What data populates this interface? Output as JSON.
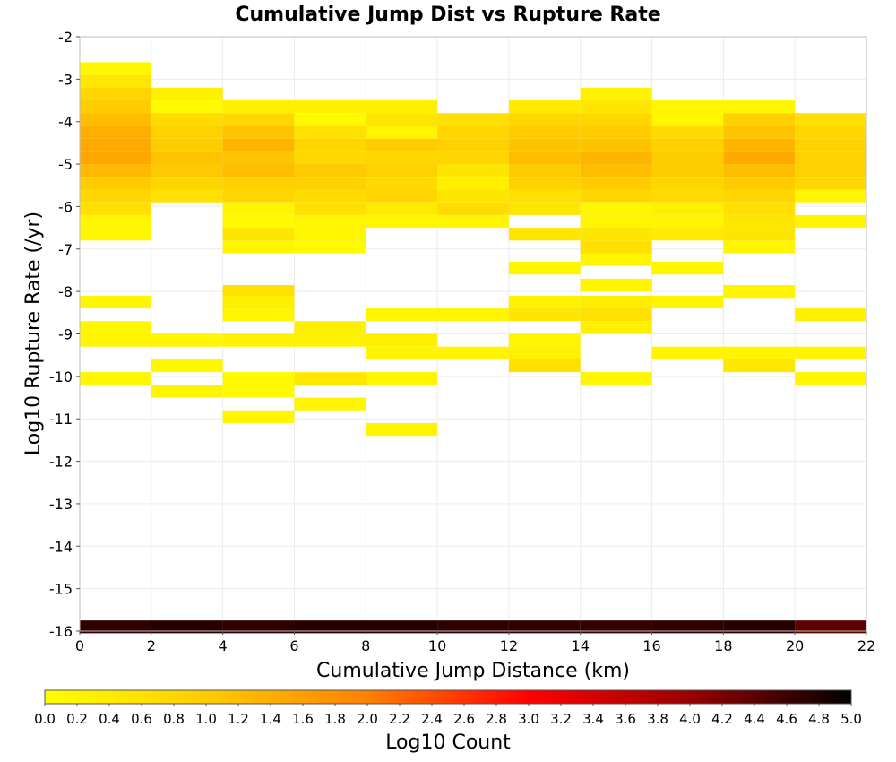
{
  "chart_data": {
    "type": "heatmap",
    "title": "Cumulative Jump Dist vs Rupture Rate",
    "xlabel": "Cumulative Jump Distance (km)",
    "ylabel": "Log10 Rupture Rate (/yr)",
    "colorbar_label": "Log10 Count",
    "xlim": [
      0,
      22
    ],
    "ylim": [
      -16,
      -2
    ],
    "x_ticks": [
      "0",
      "2",
      "4",
      "6",
      "8",
      "10",
      "12",
      "14",
      "16",
      "18",
      "20",
      "22"
    ],
    "y_ticks": [
      "-2",
      "-3",
      "-4",
      "-5",
      "-6",
      "-7",
      "-8",
      "-9",
      "-10",
      "-11",
      "-12",
      "-13",
      "-14",
      "-15",
      "-16"
    ],
    "colorbar_ticks": [
      "0.0",
      "0.2",
      "0.4",
      "0.6",
      "0.8",
      "1.0",
      "1.2",
      "1.4",
      "1.6",
      "1.8",
      "2.0",
      "2.2",
      "2.4",
      "2.6",
      "2.8",
      "3.0",
      "3.2",
      "3.4",
      "3.6",
      "3.8",
      "4.0",
      "4.2",
      "4.4",
      "4.6",
      "4.8",
      "5.0"
    ],
    "colorbar_range": [
      0,
      5
    ],
    "colorscale": [
      "#ffff00",
      "#ffcc00",
      "#ff8000",
      "#ff0000",
      "#990000",
      "#000000"
    ],
    "x_bin_width": 2,
    "y_bin_height": 0.3,
    "grid": true,
    "columns": [
      {
        "x": 1,
        "cells": [
          [
            -2.75,
            0.15
          ],
          [
            -3.05,
            0.5
          ],
          [
            -3.35,
            0.8
          ],
          [
            -3.65,
            1.0
          ],
          [
            -3.95,
            1.2
          ],
          [
            -4.25,
            1.4
          ],
          [
            -4.55,
            1.45
          ],
          [
            -4.85,
            1.5
          ],
          [
            -5.15,
            1.25
          ],
          [
            -5.45,
            1.0
          ],
          [
            -5.75,
            0.8
          ],
          [
            -6.05,
            0.6
          ],
          [
            -6.35,
            0.2
          ],
          [
            -6.65,
            0.15
          ],
          [
            -8.25,
            0.2
          ],
          [
            -8.85,
            0.15
          ],
          [
            -9.15,
            0.2
          ],
          [
            -10.05,
            0.15
          ]
        ]
      },
      {
        "x": 3,
        "cells": [
          [
            -3.35,
            0.3
          ],
          [
            -3.65,
            0.1
          ],
          [
            -3.95,
            0.7
          ],
          [
            -4.25,
            0.9
          ],
          [
            -4.55,
            1.0
          ],
          [
            -4.85,
            1.1
          ],
          [
            -5.15,
            1.05
          ],
          [
            -5.45,
            0.8
          ],
          [
            -5.75,
            0.6
          ],
          [
            -9.15,
            0.2
          ],
          [
            -9.75,
            0.15
          ],
          [
            -10.35,
            0.2
          ]
        ]
      },
      {
        "x": 5,
        "cells": [
          [
            -3.65,
            0.3
          ],
          [
            -3.95,
            0.8
          ],
          [
            -4.25,
            1.1
          ],
          [
            -4.55,
            1.3
          ],
          [
            -4.85,
            1.1
          ],
          [
            -5.15,
            1.2
          ],
          [
            -5.45,
            0.9
          ],
          [
            -5.75,
            0.8
          ],
          [
            -6.05,
            0.2
          ],
          [
            -6.35,
            0.1
          ],
          [
            -6.65,
            0.5
          ],
          [
            -6.95,
            0.2
          ],
          [
            -8.0,
            0.6
          ],
          [
            -8.25,
            0.3
          ],
          [
            -8.55,
            0.2
          ],
          [
            -9.15,
            0.25
          ],
          [
            -10.05,
            0.1
          ],
          [
            -10.35,
            0.1
          ],
          [
            -10.95,
            0.2
          ]
        ]
      },
      {
        "x": 7,
        "cells": [
          [
            -3.65,
            0.3
          ],
          [
            -3.95,
            0.1
          ],
          [
            -4.25,
            0.6
          ],
          [
            -4.55,
            0.8
          ],
          [
            -4.85,
            0.75
          ],
          [
            -5.15,
            1.0
          ],
          [
            -5.45,
            0.9
          ],
          [
            -5.75,
            0.7
          ],
          [
            -6.05,
            0.6
          ],
          [
            -6.35,
            0.2
          ],
          [
            -6.65,
            0.15
          ],
          [
            -6.95,
            0.1
          ],
          [
            -8.85,
            0.3
          ],
          [
            -9.15,
            0.25
          ],
          [
            -10.05,
            0.45
          ],
          [
            -10.65,
            0.2
          ]
        ]
      },
      {
        "x": 9,
        "cells": [
          [
            -3.65,
            0.3
          ],
          [
            -3.95,
            0.5
          ],
          [
            -4.25,
            0.2
          ],
          [
            -4.55,
            1.0
          ],
          [
            -4.85,
            0.8
          ],
          [
            -5.15,
            0.9
          ],
          [
            -5.45,
            0.7
          ],
          [
            -5.75,
            0.8
          ],
          [
            -6.05,
            0.4
          ],
          [
            -6.35,
            0.2
          ],
          [
            -8.55,
            0.2
          ],
          [
            -9.15,
            0.3
          ],
          [
            -9.45,
            0.2
          ],
          [
            -10.05,
            0.2
          ],
          [
            -11.25,
            0.2
          ]
        ]
      },
      {
        "x": 11,
        "cells": [
          [
            -3.95,
            0.6
          ],
          [
            -4.25,
            0.8
          ],
          [
            -4.55,
            0.9
          ],
          [
            -4.85,
            0.8
          ],
          [
            -5.15,
            0.5
          ],
          [
            -5.45,
            0.3
          ],
          [
            -5.75,
            0.5
          ],
          [
            -6.05,
            0.7
          ],
          [
            -6.35,
            0.2
          ],
          [
            -8.55,
            0.2
          ],
          [
            -9.45,
            0.2
          ]
        ]
      },
      {
        "x": 13,
        "cells": [
          [
            -3.65,
            0.4
          ],
          [
            -3.95,
            0.8
          ],
          [
            -4.25,
            1.0
          ],
          [
            -4.55,
            1.1
          ],
          [
            -4.85,
            1.2
          ],
          [
            -5.15,
            1.0
          ],
          [
            -5.45,
            0.9
          ],
          [
            -5.75,
            0.6
          ],
          [
            -6.05,
            0.5
          ],
          [
            -6.65,
            0.5
          ],
          [
            -7.45,
            0.2
          ],
          [
            -8.25,
            0.25
          ],
          [
            -8.55,
            0.5
          ],
          [
            -9.15,
            0.2
          ],
          [
            -9.45,
            0.25
          ],
          [
            -9.75,
            0.6
          ]
        ]
      },
      {
        "x": 15,
        "cells": [
          [
            -3.35,
            0.25
          ],
          [
            -3.65,
            0.5
          ],
          [
            -3.95,
            0.8
          ],
          [
            -4.25,
            1.0
          ],
          [
            -4.55,
            1.1
          ],
          [
            -4.85,
            1.3
          ],
          [
            -5.15,
            1.2
          ],
          [
            -5.45,
            1.0
          ],
          [
            -5.75,
            0.8
          ],
          [
            -6.05,
            0.15
          ],
          [
            -6.35,
            0.2
          ],
          [
            -6.65,
            0.5
          ],
          [
            -6.95,
            0.6
          ],
          [
            -7.25,
            0.2
          ],
          [
            -7.85,
            0.2
          ],
          [
            -8.25,
            0.35
          ],
          [
            -8.55,
            0.6
          ],
          [
            -8.85,
            0.3
          ],
          [
            -10.05,
            0.2
          ]
        ]
      },
      {
        "x": 17,
        "cells": [
          [
            -3.65,
            0.2
          ],
          [
            -3.95,
            0.2
          ],
          [
            -4.25,
            0.7
          ],
          [
            -4.55,
            0.9
          ],
          [
            -4.85,
            1.0
          ],
          [
            -5.15,
            1.0
          ],
          [
            -5.45,
            0.8
          ],
          [
            -5.75,
            0.7
          ],
          [
            -6.05,
            0.3
          ],
          [
            -6.35,
            0.2
          ],
          [
            -6.65,
            0.4
          ],
          [
            -7.45,
            0.2
          ],
          [
            -8.25,
            0.2
          ],
          [
            -9.45,
            0.2
          ]
        ]
      },
      {
        "x": 19,
        "cells": [
          [
            -3.65,
            0.2
          ],
          [
            -3.95,
            0.9
          ],
          [
            -4.25,
            1.1
          ],
          [
            -4.55,
            1.3
          ],
          [
            -4.85,
            1.45
          ],
          [
            -5.15,
            1.2
          ],
          [
            -5.45,
            1.0
          ],
          [
            -5.75,
            0.8
          ],
          [
            -6.05,
            0.6
          ],
          [
            -6.35,
            0.5
          ],
          [
            -6.65,
            0.5
          ],
          [
            -6.95,
            0.2
          ],
          [
            -8.0,
            0.2
          ],
          [
            -9.45,
            0.2
          ],
          [
            -9.75,
            0.45
          ]
        ]
      },
      {
        "x": 21,
        "cells": [
          [
            -3.95,
            0.6
          ],
          [
            -4.25,
            0.8
          ],
          [
            -4.55,
            0.9
          ],
          [
            -4.85,
            0.9
          ],
          [
            -5.15,
            0.9
          ],
          [
            -5.45,
            0.8
          ],
          [
            -5.75,
            0.2
          ],
          [
            -6.35,
            0.2
          ],
          [
            -8.55,
            0.3
          ],
          [
            -9.45,
            0.2
          ],
          [
            -10.05,
            0.2
          ]
        ]
      }
    ],
    "bottom_row": {
      "y": -15.9,
      "x_values": [
        1,
        3,
        5,
        7,
        9,
        11,
        13,
        15,
        17,
        19,
        21
      ],
      "values": [
        4.7,
        4.75,
        4.7,
        4.75,
        4.75,
        4.7,
        4.7,
        4.65,
        4.7,
        4.75,
        4.4
      ]
    }
  }
}
